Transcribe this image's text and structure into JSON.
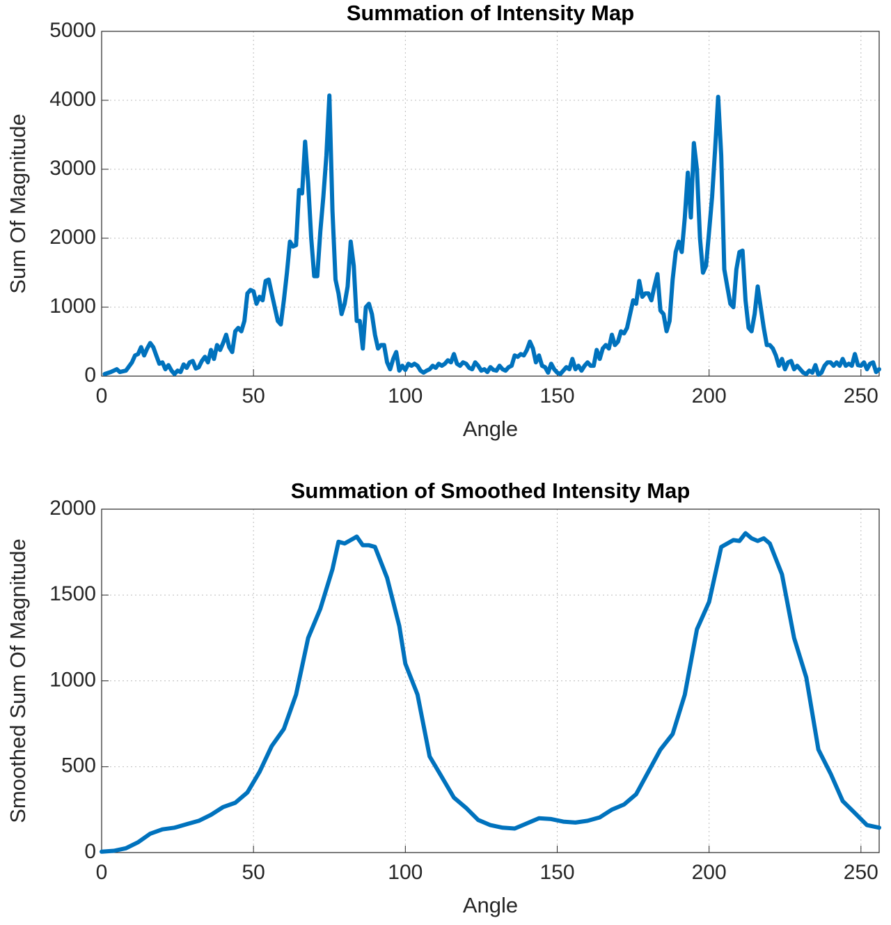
{
  "chart_data": [
    {
      "type": "line",
      "title": "Summation of Intensity Map",
      "x_label": "Angle",
      "y_label": "Sum Of Magnitude",
      "xlim": [
        0,
        256
      ],
      "ylim": [
        0,
        5000
      ],
      "xticks": [
        0,
        50,
        100,
        150,
        200,
        250
      ],
      "yticks": [
        0,
        1000,
        2000,
        3000,
        4000,
        5000
      ],
      "grid": true,
      "series": [
        {
          "name": "Sum Of Magnitude",
          "color": "#0072bd",
          "x": [
            1,
            3,
            5,
            6,
            8,
            10,
            11,
            12,
            13,
            14,
            15,
            16,
            17,
            18,
            19,
            20,
            21,
            22,
            23,
            24,
            25,
            26,
            27,
            28,
            29,
            30,
            31,
            32,
            33,
            34,
            35,
            36,
            37,
            38,
            39,
            40,
            41,
            42,
            43,
            44,
            45,
            46,
            47,
            48,
            49,
            50,
            51,
            52,
            53,
            54,
            55,
            56,
            57,
            58,
            59,
            60,
            61,
            62,
            63,
            64,
            65,
            66,
            67,
            68,
            69,
            70,
            71,
            72,
            73,
            74,
            75,
            76,
            77,
            78,
            79,
            80,
            81,
            82,
            83,
            84,
            85,
            86,
            87,
            88,
            89,
            90,
            91,
            92,
            93,
            94,
            95,
            96,
            97,
            98,
            99,
            100,
            101,
            102,
            103,
            104,
            105,
            106,
            107,
            108,
            109,
            110,
            111,
            112,
            113,
            114,
            115,
            116,
            117,
            118,
            119,
            120,
            121,
            122,
            123,
            124,
            125,
            126,
            127,
            128,
            129,
            130,
            131,
            132,
            133,
            134,
            135,
            136,
            137,
            138,
            139,
            140,
            141,
            142,
            143,
            144,
            145,
            146,
            147,
            148,
            149,
            150,
            151,
            152,
            153,
            154,
            155,
            156,
            157,
            158,
            159,
            160,
            161,
            162,
            163,
            164,
            165,
            166,
            167,
            168,
            169,
            170,
            171,
            172,
            173,
            174,
            175,
            176,
            177,
            178,
            179,
            180,
            181,
            182,
            183,
            184,
            185,
            186,
            187,
            188,
            189,
            190,
            191,
            192,
            193,
            194,
            195,
            196,
            197,
            198,
            199,
            200,
            201,
            202,
            203,
            204,
            205,
            206,
            207,
            208,
            209,
            210,
            211,
            212,
            213,
            214,
            215,
            216,
            217,
            218,
            219,
            220,
            221,
            222,
            223,
            224,
            225,
            226,
            227,
            228,
            229,
            230,
            231,
            232,
            233,
            234,
            235,
            236,
            237,
            238,
            239,
            240,
            241,
            242,
            243,
            244,
            245,
            246,
            247,
            248,
            249,
            250,
            251,
            252,
            253,
            254,
            255,
            256
          ],
          "values": [
            30,
            60,
            100,
            60,
            80,
            200,
            300,
            320,
            420,
            300,
            400,
            480,
            420,
            300,
            180,
            200,
            100,
            160,
            80,
            30,
            80,
            60,
            170,
            120,
            200,
            220,
            110,
            130,
            220,
            280,
            200,
            380,
            250,
            450,
            380,
            480,
            600,
            420,
            350,
            650,
            700,
            650,
            800,
            1200,
            1250,
            1230,
            1050,
            1150,
            1100,
            1380,
            1400,
            1200,
            1000,
            800,
            750,
            1100,
            1500,
            1950,
            1880,
            1900,
            2700,
            2650,
            3400,
            2800,
            2000,
            1450,
            1450,
            2100,
            2600,
            3200,
            4070,
            2400,
            1400,
            1200,
            900,
            1050,
            1300,
            1950,
            1600,
            800,
            800,
            400,
            1000,
            1050,
            900,
            600,
            400,
            450,
            450,
            200,
            100,
            250,
            350,
            80,
            150,
            90,
            180,
            150,
            180,
            150,
            80,
            50,
            80,
            100,
            150,
            120,
            180,
            150,
            180,
            230,
            200,
            320,
            180,
            150,
            200,
            180,
            120,
            100,
            200,
            150,
            80,
            100,
            60,
            130,
            90,
            80,
            150,
            100,
            80,
            130,
            150,
            300,
            280,
            320,
            300,
            380,
            500,
            400,
            200,
            300,
            150,
            130,
            50,
            180,
            100,
            50,
            30,
            80,
            130,
            100,
            250,
            100,
            150,
            80,
            150,
            200,
            150,
            150,
            380,
            250,
            400,
            450,
            400,
            600,
            450,
            500,
            650,
            620,
            700,
            900,
            1100,
            1050,
            1380,
            1150,
            1200,
            1200,
            1100,
            1300,
            1480,
            950,
            900,
            650,
            800,
            1400,
            1800,
            1950,
            1800,
            2300,
            2950,
            2300,
            3380,
            3000,
            2000,
            1500,
            1600,
            2100,
            2600,
            3300,
            4050,
            3200,
            1550,
            1300,
            1050,
            1000,
            1550,
            1800,
            1820,
            1100,
            700,
            650,
            900,
            1300,
            1000,
            700,
            450,
            450,
            400,
            300,
            150,
            250,
            100,
            200,
            220,
            100,
            150,
            100,
            50,
            30,
            80,
            50,
            160,
            20,
            50,
            150,
            200,
            200,
            150,
            200,
            150,
            250,
            150,
            180,
            150,
            320,
            160,
            150,
            200,
            100,
            180,
            200,
            60,
            100
          ]
        }
      ]
    },
    {
      "type": "line",
      "title": "Summation of Smoothed Intensity Map",
      "x_label": "Angle",
      "y_label": "Smoothed Sum Of Magnitude",
      "xlim": [
        0,
        256
      ],
      "ylim": [
        0,
        2000
      ],
      "xticks": [
        0,
        50,
        100,
        150,
        200,
        250
      ],
      "yticks": [
        0,
        500,
        1000,
        1500,
        2000
      ],
      "grid": true,
      "series": [
        {
          "name": "Smoothed Sum Of Magnitude",
          "color": "#0072bd",
          "x": [
            0,
            4,
            8,
            12,
            16,
            20,
            24,
            28,
            32,
            36,
            40,
            44,
            48,
            52,
            56,
            60,
            64,
            68,
            72,
            76,
            78,
            80,
            82,
            84,
            86,
            88,
            90,
            94,
            98,
            100,
            104,
            106,
            108,
            112,
            116,
            120,
            124,
            128,
            132,
            136,
            140,
            144,
            148,
            152,
            156,
            160,
            164,
            168,
            172,
            176,
            180,
            184,
            188,
            192,
            196,
            200,
            204,
            208,
            210,
            212,
            214,
            216,
            218,
            220,
            224,
            228,
            232,
            236,
            240,
            244,
            248,
            252,
            256
          ],
          "values": [
            5,
            10,
            25,
            60,
            110,
            135,
            145,
            165,
            185,
            220,
            265,
            290,
            350,
            470,
            620,
            720,
            920,
            1250,
            1420,
            1650,
            1810,
            1800,
            1820,
            1840,
            1790,
            1790,
            1780,
            1600,
            1320,
            1100,
            920,
            740,
            560,
            440,
            320,
            260,
            190,
            160,
            145,
            140,
            170,
            200,
            195,
            180,
            175,
            185,
            205,
            250,
            280,
            340,
            470,
            600,
            690,
            920,
            1300,
            1460,
            1780,
            1820,
            1815,
            1860,
            1830,
            1815,
            1830,
            1800,
            1620,
            1250,
            1020,
            600,
            460,
            300,
            230,
            160,
            145
          ]
        }
      ]
    }
  ]
}
